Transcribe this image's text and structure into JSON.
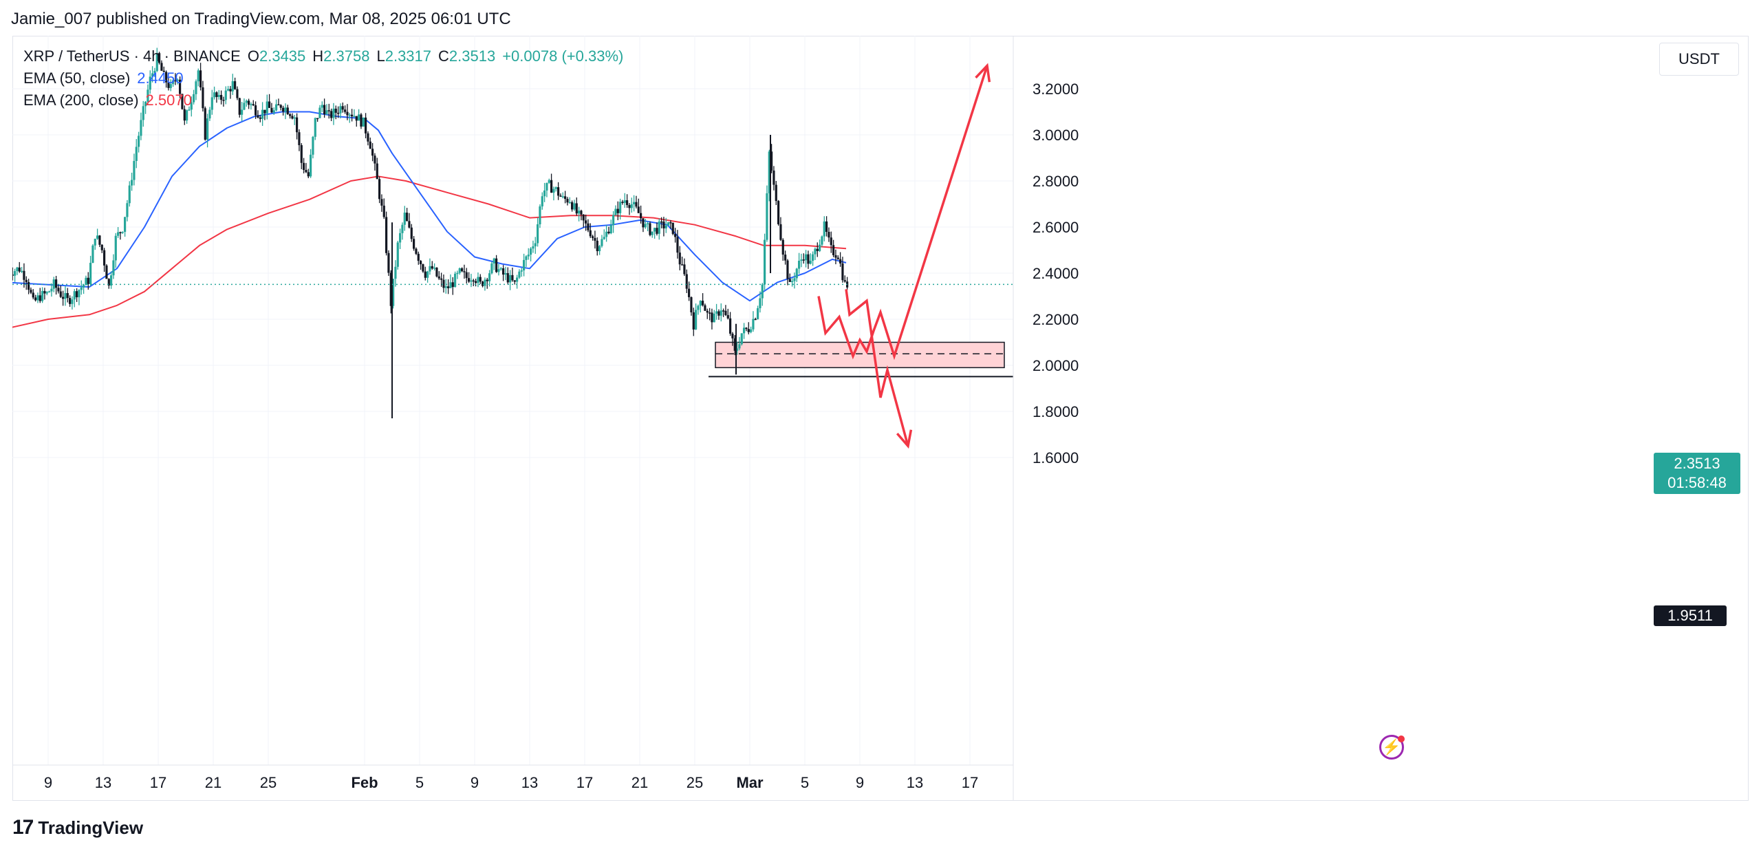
{
  "header": {
    "publisher": "Jamie_007 published on TradingView.com, Mar 08, 2025 06:01 UTC"
  },
  "legend": {
    "symbol": "XRP / TetherUS · 4h · BINANCE",
    "o_label": "O",
    "o_value": "2.3435",
    "h_label": "H",
    "h_value": "2.3758",
    "l_label": "L",
    "l_value": "2.3317",
    "c_label": "C",
    "c_value": "2.3513",
    "change": "+0.0078 (+0.33%)",
    "ema50_label": "EMA (50, close)",
    "ema50_value": "2.4450",
    "ema200_label": "EMA (200, close)",
    "ema200_value": "2.5070"
  },
  "price_axis": {
    "currency": "USDT",
    "current_price": "2.3513",
    "countdown": "01:58:48",
    "level_label": "1.9511"
  },
  "footer": {
    "logo_mark": "17",
    "brand": "TradingView"
  },
  "colors": {
    "up": "#26a69a",
    "down": "#131722",
    "ema50": "#2962ff",
    "ema200": "#f23645",
    "arrows": "#f23645",
    "zone_fill": "#ffd3d6"
  },
  "chart_data": {
    "type": "candlestick",
    "title": "XRP / TetherUS · 4h · BINANCE",
    "ylim": [
      1.55,
      3.4
    ],
    "x_ticks": [
      {
        "label": "9",
        "date": "2025-01-09"
      },
      {
        "label": "13",
        "date": "2025-01-13"
      },
      {
        "label": "17",
        "date": "2025-01-17"
      },
      {
        "label": "21",
        "date": "2025-01-21"
      },
      {
        "label": "25",
        "date": "2025-01-25"
      },
      {
        "label": "Feb",
        "date": "2025-02-01"
      },
      {
        "label": "5",
        "date": "2025-02-05"
      },
      {
        "label": "9",
        "date": "2025-02-09"
      },
      {
        "label": "13",
        "date": "2025-02-13"
      },
      {
        "label": "17",
        "date": "2025-02-17"
      },
      {
        "label": "21",
        "date": "2025-02-21"
      },
      {
        "label": "25",
        "date": "2025-02-25"
      },
      {
        "label": "Mar",
        "date": "2025-03-01"
      },
      {
        "label": "5",
        "date": "2025-03-05"
      },
      {
        "label": "9",
        "date": "2025-03-09"
      },
      {
        "label": "13",
        "date": "2025-03-13"
      },
      {
        "label": "17",
        "date": "2025-03-17"
      }
    ],
    "y_ticks": [
      "1.6000",
      "1.8000",
      "2.0000",
      "2.2000",
      "2.4000",
      "2.6000",
      "2.8000",
      "3.0000",
      "3.2000"
    ],
    "price_path": [
      [
        "2025-01-06T00:00",
        2.4
      ],
      [
        "2025-01-07T00:00",
        2.42
      ],
      [
        "2025-01-07T12:00",
        2.38
      ],
      [
        "2025-01-08T00:00",
        2.27
      ],
      [
        "2025-01-08T12:00",
        2.3
      ],
      [
        "2025-01-09T00:00",
        2.31
      ],
      [
        "2025-01-09T12:00",
        2.35
      ],
      [
        "2025-01-10T00:00",
        2.31
      ],
      [
        "2025-01-10T12:00",
        2.28
      ],
      [
        "2025-01-11T00:00",
        2.31
      ],
      [
        "2025-01-11T12:00",
        2.34
      ],
      [
        "2025-01-12T00:00",
        2.37
      ],
      [
        "2025-01-12T12:00",
        2.57
      ],
      [
        "2025-01-13T00:00",
        2.5
      ],
      [
        "2025-01-13T12:00",
        2.34
      ],
      [
        "2025-01-14T00:00",
        2.55
      ],
      [
        "2025-01-14T12:00",
        2.6
      ],
      [
        "2025-01-15T00:00",
        2.76
      ],
      [
        "2025-01-15T12:00",
        2.95
      ],
      [
        "2025-01-16T00:00",
        3.1
      ],
      [
        "2025-01-16T12:00",
        3.24
      ],
      [
        "2025-01-17T00:00",
        3.33
      ],
      [
        "2025-01-17T12:00",
        3.25
      ],
      [
        "2025-01-18T00:00",
        3.2
      ],
      [
        "2025-01-18T12:00",
        3.26
      ],
      [
        "2025-01-19T00:00",
        3.05
      ],
      [
        "2025-01-19T12:00",
        3.16
      ],
      [
        "2025-01-20T00:00",
        3.28
      ],
      [
        "2025-01-20T12:00",
        3.0
      ],
      [
        "2025-01-21T00:00",
        3.18
      ],
      [
        "2025-01-21T12:00",
        3.15
      ],
      [
        "2025-01-22T00:00",
        3.18
      ],
      [
        "2025-01-22T12:00",
        3.22
      ],
      [
        "2025-01-23T00:00",
        3.1
      ],
      [
        "2025-01-23T12:00",
        3.15
      ],
      [
        "2025-01-24T00:00",
        3.12
      ],
      [
        "2025-01-24T12:00",
        3.09
      ],
      [
        "2025-01-25T00:00",
        3.12
      ],
      [
        "2025-01-25T12:00",
        3.1
      ],
      [
        "2025-01-26T00:00",
        3.13
      ],
      [
        "2025-01-26T12:00",
        3.11
      ],
      [
        "2025-01-27T00:00",
        3.08
      ],
      [
        "2025-01-27T12:00",
        2.88
      ],
      [
        "2025-01-28T00:00",
        2.82
      ],
      [
        "2025-01-28T12:00",
        3.06
      ],
      [
        "2025-01-29T00:00",
        3.13
      ],
      [
        "2025-01-29T12:00",
        3.08
      ],
      [
        "2025-01-30T00:00",
        3.1
      ],
      [
        "2025-01-30T12:00",
        3.13
      ],
      [
        "2025-01-31T00:00",
        3.1
      ],
      [
        "2025-01-31T12:00",
        3.08
      ],
      [
        "2025-02-01T00:00",
        3.05
      ],
      [
        "2025-02-01T12:00",
        2.96
      ],
      [
        "2025-02-02T00:00",
        2.8
      ],
      [
        "2025-02-02T12:00",
        2.62
      ],
      [
        "2025-02-03T00:00",
        2.27
      ],
      [
        "2025-02-03T12:00",
        2.52
      ],
      [
        "2025-02-04T00:00",
        2.65
      ],
      [
        "2025-02-04T12:00",
        2.55
      ],
      [
        "2025-02-05T00:00",
        2.47
      ],
      [
        "2025-02-05T12:00",
        2.4
      ],
      [
        "2025-02-06T00:00",
        2.42
      ],
      [
        "2025-02-06T12:00",
        2.37
      ],
      [
        "2025-02-07T00:00",
        2.33
      ],
      [
        "2025-02-07T12:00",
        2.36
      ],
      [
        "2025-02-08T00:00",
        2.4
      ],
      [
        "2025-02-08T12:00",
        2.38
      ],
      [
        "2025-02-09T00:00",
        2.39
      ],
      [
        "2025-02-09T12:00",
        2.35
      ],
      [
        "2025-02-10T00:00",
        2.39
      ],
      [
        "2025-02-10T12:00",
        2.44
      ],
      [
        "2025-02-11T00:00",
        2.4
      ],
      [
        "2025-02-11T12:00",
        2.38
      ],
      [
        "2025-02-12T00:00",
        2.35
      ],
      [
        "2025-02-12T12:00",
        2.43
      ],
      [
        "2025-02-13T00:00",
        2.48
      ],
      [
        "2025-02-13T12:00",
        2.55
      ],
      [
        "2025-02-14T00:00",
        2.75
      ],
      [
        "2025-02-14T12:00",
        2.78
      ],
      [
        "2025-02-15T00:00",
        2.76
      ],
      [
        "2025-02-15T12:00",
        2.72
      ],
      [
        "2025-02-16T00:00",
        2.72
      ],
      [
        "2025-02-16T12:00",
        2.66
      ],
      [
        "2025-02-17T00:00",
        2.62
      ],
      [
        "2025-02-17T12:00",
        2.58
      ],
      [
        "2025-02-18T00:00",
        2.52
      ],
      [
        "2025-02-18T12:00",
        2.55
      ],
      [
        "2025-02-19T00:00",
        2.62
      ],
      [
        "2025-02-19T12:00",
        2.68
      ],
      [
        "2025-02-20T00:00",
        2.72
      ],
      [
        "2025-02-20T12:00",
        2.7
      ],
      [
        "2025-02-21T00:00",
        2.66
      ],
      [
        "2025-02-21T12:00",
        2.6
      ],
      [
        "2025-02-22T00:00",
        2.58
      ],
      [
        "2025-02-22T12:00",
        2.6
      ],
      [
        "2025-02-23T00:00",
        2.61
      ],
      [
        "2025-02-23T12:00",
        2.59
      ],
      [
        "2025-02-24T00:00",
        2.45
      ],
      [
        "2025-02-24T12:00",
        2.35
      ],
      [
        "2025-02-25T00:00",
        2.18
      ],
      [
        "2025-02-25T12:00",
        2.3
      ],
      [
        "2025-02-26T00:00",
        2.22
      ],
      [
        "2025-02-26T12:00",
        2.2
      ],
      [
        "2025-02-27T00:00",
        2.25
      ],
      [
        "2025-02-27T12:00",
        2.19
      ],
      [
        "2025-02-28T00:00",
        2.05
      ],
      [
        "2025-02-28T12:00",
        2.14
      ],
      [
        "2025-03-01T00:00",
        2.16
      ],
      [
        "2025-03-01T12:00",
        2.22
      ],
      [
        "2025-03-02T00:00",
        2.35
      ],
      [
        "2025-03-02T12:00",
        2.92
      ],
      [
        "2025-03-03T00:00",
        2.7
      ],
      [
        "2025-03-03T12:00",
        2.5
      ],
      [
        "2025-03-04T00:00",
        2.34
      ],
      [
        "2025-03-04T12:00",
        2.42
      ],
      [
        "2025-03-05T00:00",
        2.48
      ],
      [
        "2025-03-05T12:00",
        2.44
      ],
      [
        "2025-03-06T00:00",
        2.52
      ],
      [
        "2025-03-06T12:00",
        2.6
      ],
      [
        "2025-03-07T00:00",
        2.5
      ],
      [
        "2025-03-07T12:00",
        2.48
      ],
      [
        "2025-03-08T00:00",
        2.35
      ]
    ],
    "spikes": [
      {
        "date": "2025-02-03T00:00",
        "high": 2.62,
        "low": 1.77
      },
      {
        "date": "2025-03-02T12:00",
        "high": 3.0,
        "low": 2.4
      },
      {
        "date": "2025-02-28T00:00",
        "high": 2.18,
        "low": 1.96
      }
    ],
    "ema50": [
      [
        "2025-01-06T00:00",
        2.36
      ],
      [
        "2025-01-09T00:00",
        2.35
      ],
      [
        "2025-01-12T00:00",
        2.34
      ],
      [
        "2025-01-14T00:00",
        2.42
      ],
      [
        "2025-01-16T00:00",
        2.6
      ],
      [
        "2025-01-18T00:00",
        2.82
      ],
      [
        "2025-01-20T00:00",
        2.95
      ],
      [
        "2025-01-22T00:00",
        3.03
      ],
      [
        "2025-01-24T00:00",
        3.08
      ],
      [
        "2025-01-26T00:00",
        3.1
      ],
      [
        "2025-01-28T00:00",
        3.1
      ],
      [
        "2025-01-30T00:00",
        3.08
      ],
      [
        "2025-02-01T00:00",
        3.07
      ],
      [
        "2025-02-02T00:00",
        3.02
      ],
      [
        "2025-02-03T00:00",
        2.92
      ],
      [
        "2025-02-05T00:00",
        2.75
      ],
      [
        "2025-02-07T00:00",
        2.58
      ],
      [
        "2025-02-09T00:00",
        2.47
      ],
      [
        "2025-02-11T00:00",
        2.44
      ],
      [
        "2025-02-13T00:00",
        2.42
      ],
      [
        "2025-02-15T00:00",
        2.55
      ],
      [
        "2025-02-17T00:00",
        2.6
      ],
      [
        "2025-02-19T00:00",
        2.61
      ],
      [
        "2025-02-21T00:00",
        2.63
      ],
      [
        "2025-02-23T00:00",
        2.61
      ],
      [
        "2025-02-25T00:00",
        2.48
      ],
      [
        "2025-02-27T00:00",
        2.36
      ],
      [
        "2025-03-01T00:00",
        2.28
      ],
      [
        "2025-03-03T00:00",
        2.36
      ],
      [
        "2025-03-05T00:00",
        2.4
      ],
      [
        "2025-03-07T00:00",
        2.46
      ],
      [
        "2025-03-08T00:00",
        2.445
      ]
    ],
    "ema200": [
      [
        "2025-01-06T00:00",
        2.16
      ],
      [
        "2025-01-09T00:00",
        2.2
      ],
      [
        "2025-01-12T00:00",
        2.22
      ],
      [
        "2025-01-14T00:00",
        2.26
      ],
      [
        "2025-01-16T00:00",
        2.32
      ],
      [
        "2025-01-18T00:00",
        2.42
      ],
      [
        "2025-01-20T00:00",
        2.52
      ],
      [
        "2025-01-22T00:00",
        2.59
      ],
      [
        "2025-01-25T00:00",
        2.66
      ],
      [
        "2025-01-28T00:00",
        2.72
      ],
      [
        "2025-01-31T00:00",
        2.8
      ],
      [
        "2025-02-02T00:00",
        2.82
      ],
      [
        "2025-02-04T00:00",
        2.8
      ],
      [
        "2025-02-07T00:00",
        2.75
      ],
      [
        "2025-02-10T00:00",
        2.7
      ],
      [
        "2025-02-13T00:00",
        2.64
      ],
      [
        "2025-02-16T00:00",
        2.65
      ],
      [
        "2025-02-19T00:00",
        2.65
      ],
      [
        "2025-02-22T00:00",
        2.64
      ],
      [
        "2025-02-25T00:00",
        2.61
      ],
      [
        "2025-02-28T00:00",
        2.56
      ],
      [
        "2025-03-02T00:00",
        2.52
      ],
      [
        "2025-03-05T00:00",
        2.52
      ],
      [
        "2025-03-08T00:00",
        2.507
      ]
    ],
    "current_price": 2.3513,
    "horizontal_line": 1.9511,
    "demand_zone": {
      "from": "2025-02-26T12:00",
      "to": "2025-03-19T12:00",
      "low": 1.99,
      "high": 2.1,
      "mid": 2.05
    },
    "projection_bullish": [
      [
        "2025-03-06T00:00",
        2.3
      ],
      [
        "2025-03-06T12:00",
        2.14
      ],
      [
        "2025-03-07T12:00",
        2.21
      ],
      [
        "2025-03-08T12:00",
        2.04
      ],
      [
        "2025-03-09T00:00",
        2.11
      ],
      [
        "2025-03-09T12:00",
        2.06
      ],
      [
        "2025-03-10T00:00",
        2.15
      ],
      [
        "2025-03-10T12:00",
        2.23
      ],
      [
        "2025-03-11T12:00",
        2.04
      ],
      [
        "2025-03-18T06:00",
        3.3
      ]
    ],
    "projection_bearish": [
      [
        "2025-03-08T00:00",
        2.33
      ],
      [
        "2025-03-08T06:00",
        2.22
      ],
      [
        "2025-03-09T12:00",
        2.28
      ],
      [
        "2025-03-10T12:00",
        1.86
      ],
      [
        "2025-03-11T00:00",
        1.98
      ],
      [
        "2025-03-12T12:00",
        1.65
      ]
    ]
  }
}
